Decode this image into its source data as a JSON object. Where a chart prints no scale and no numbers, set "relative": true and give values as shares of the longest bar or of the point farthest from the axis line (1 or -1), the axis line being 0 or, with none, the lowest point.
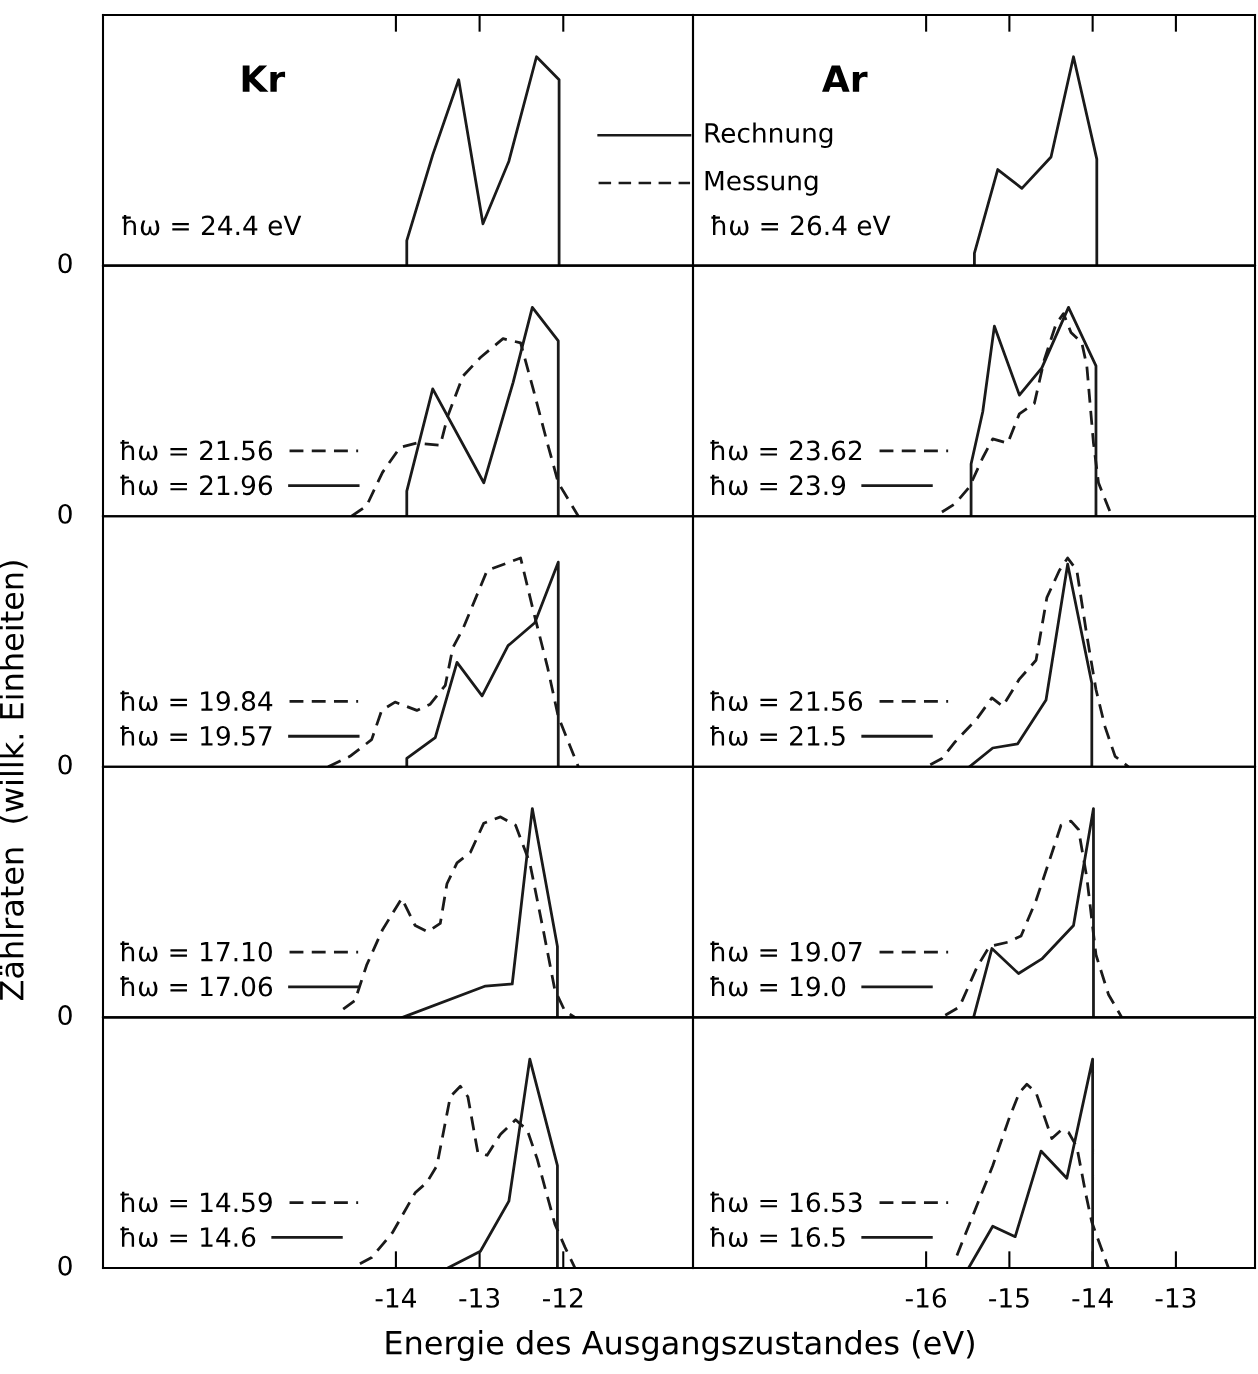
{
  "chart_data": [
    {
      "type": "line",
      "title": "Kr",
      "relative": true,
      "xlim": [
        -17.5,
        -10.45
      ],
      "xticks": [
        -14,
        -13,
        -12
      ],
      "tick_labels": false,
      "legend": false,
      "annotations": [
        "0",
        "ħω = 24.4 eV",
        "Rechnung",
        "Messung"
      ],
      "series": [
        {
          "color": "#1a1a1a",
          "line_style": "solid",
          "x": [
            -13.87,
            -13.87,
            -13.56,
            -13.25,
            -12.96,
            -12.65,
            -12.32,
            -12.05,
            -12.05
          ],
          "values": [
            0,
            0.12,
            0.53,
            0.89,
            0.2,
            0.5,
            1,
            0.89,
            0
          ]
        }
      ]
    },
    {
      "type": "line",
      "title": "Ar",
      "relative": true,
      "xlim": [
        -18.8,
        -12.05
      ],
      "xticks": [
        -16,
        -15,
        -14,
        -13
      ],
      "tick_labels": false,
      "legend": false,
      "annotations": [
        "ħω = 26.4 eV"
      ],
      "series": [
        {
          "color": "#1a1a1a",
          "line_style": "solid",
          "x": [
            -15.42,
            -15.42,
            -15.14,
            -14.85,
            -14.5,
            -14.23,
            -13.95,
            -13.95
          ],
          "values": [
            0,
            0.06,
            0.46,
            0.37,
            0.52,
            1,
            0.51,
            0
          ]
        }
      ]
    },
    {
      "type": "line",
      "relative": true,
      "xlim": [
        -17.5,
        -10.45
      ],
      "xticks": [
        -14,
        -13,
        -12
      ],
      "tick_labels": false,
      "legend": "lower left",
      "annotations": [
        "0"
      ],
      "series": [
        {
          "name": "ħω = 21.56",
          "color": "#1a1a1a",
          "line_style": "dashed",
          "x": [
            -14.53,
            -14.35,
            -14.16,
            -13.95,
            -13.75,
            -13.47,
            -13.38,
            -13.2,
            -12.99,
            -12.72,
            -12.51,
            -12.36,
            -12.19,
            -12.06,
            -11.82
          ],
          "values": [
            0,
            0.05,
            0.21,
            0.33,
            0.35,
            0.34,
            0.48,
            0.67,
            0.76,
            0.85,
            0.83,
            0.61,
            0.35,
            0.16,
            0
          ]
        },
        {
          "name": "ħω = 21.96",
          "color": "#1a1a1a",
          "line_style": "solid",
          "x": [
            -13.87,
            -13.87,
            -13.56,
            -12.95,
            -12.6,
            -12.37,
            -12.06,
            -12.06
          ],
          "values": [
            0,
            0.12,
            0.61,
            0.16,
            0.64,
            1,
            0.84,
            0
          ]
        }
      ]
    },
    {
      "type": "line",
      "relative": true,
      "xlim": [
        -18.8,
        -12.05
      ],
      "xticks": [
        -16,
        -15,
        -14,
        -13
      ],
      "tick_labels": false,
      "legend": "lower left",
      "series": [
        {
          "name": "ħω = 23.62",
          "color": "#1a1a1a",
          "line_style": "dashed",
          "x": [
            -15.81,
            -15.65,
            -15.48,
            -15.32,
            -15.2,
            -15.02,
            -14.88,
            -14.7,
            -14.58,
            -14.44,
            -14.35,
            -14.26,
            -14.13,
            -14.07,
            -13.99,
            -13.93,
            -13.77
          ],
          "values": [
            0.02,
            0.06,
            0.14,
            0.28,
            0.37,
            0.35,
            0.49,
            0.54,
            0.75,
            0.92,
            0.97,
            0.88,
            0.83,
            0.72,
            0.35,
            0.16,
            0
          ]
        },
        {
          "name": "ħω = 23.9",
          "color": "#1a1a1a",
          "line_style": "solid",
          "x": [
            -15.46,
            -15.46,
            -15.32,
            -15.18,
            -14.88,
            -14.61,
            -14.29,
            -13.96,
            -13.96
          ],
          "values": [
            0,
            0.25,
            0.5,
            0.91,
            0.58,
            0.71,
            1,
            0.72,
            0
          ]
        }
      ]
    },
    {
      "type": "line",
      "ylabel": "Zählraten  (willk. Einheiten)",
      "relative": true,
      "xlim": [
        -17.5,
        -10.45
      ],
      "xticks": [
        -14,
        -13,
        -12
      ],
      "tick_labels": false,
      "legend": "lower left",
      "annotations": [
        "0"
      ],
      "series": [
        {
          "name": "ħω = 19.84",
          "color": "#1a1a1a",
          "line_style": "dashed",
          "x": [
            -14.81,
            -14.55,
            -14.29,
            -14.17,
            -14.01,
            -13.75,
            -13.59,
            -13.41,
            -13.32,
            -13.2,
            -12.91,
            -12.51,
            -12.36,
            -12.19,
            -12.06,
            -11.82
          ],
          "values": [
            0,
            0.05,
            0.13,
            0.27,
            0.31,
            0.27,
            0.3,
            0.39,
            0.57,
            0.66,
            0.94,
            1,
            0.75,
            0.48,
            0.24,
            0
          ]
        },
        {
          "name": "ħω = 19.57",
          "color": "#1a1a1a",
          "line_style": "solid",
          "x": [
            -13.87,
            -13.87,
            -13.53,
            -13.27,
            -12.97,
            -12.66,
            -12.34,
            -12.06,
            -12.06
          ],
          "values": [
            0,
            0.04,
            0.14,
            0.5,
            0.34,
            0.58,
            0.69,
            0.98,
            0
          ]
        }
      ]
    },
    {
      "type": "line",
      "relative": true,
      "xlim": [
        -18.8,
        -12.05
      ],
      "xticks": [
        -16,
        -15,
        -14,
        -13
      ],
      "tick_labels": false,
      "legend": "lower left",
      "series": [
        {
          "name": "ħω = 21.56",
          "color": "#1a1a1a",
          "line_style": "dashed",
          "x": [
            -15.95,
            -15.81,
            -15.65,
            -15.39,
            -15.21,
            -15.08,
            -14.88,
            -14.68,
            -14.55,
            -14.4,
            -14.3,
            -14.19,
            -14.07,
            -13.96,
            -13.85,
            -13.73,
            -13.57
          ],
          "values": [
            0.01,
            0.04,
            0.12,
            0.23,
            0.33,
            0.29,
            0.42,
            0.51,
            0.81,
            0.94,
            1,
            0.94,
            0.63,
            0.37,
            0.19,
            0.05,
            0
          ]
        },
        {
          "name": "ħω = 21.5",
          "color": "#1a1a1a",
          "line_style": "solid",
          "x": [
            -15.48,
            -15.2,
            -14.9,
            -14.56,
            -14.3,
            -14.01,
            -14.01
          ],
          "values": [
            0,
            0.09,
            0.11,
            0.32,
            0.97,
            0.4,
            0
          ]
        }
      ]
    },
    {
      "type": "line",
      "relative": true,
      "xlim": [
        -17.5,
        -10.45
      ],
      "xticks": [
        -14,
        -13,
        -12
      ],
      "tick_labels": false,
      "legend": "lower left",
      "annotations": [
        "0"
      ],
      "series": [
        {
          "name": "ħω = 17.10",
          "color": "#1a1a1a",
          "line_style": "dashed",
          "x": [
            -14.63,
            -14.49,
            -14.35,
            -14.16,
            -13.93,
            -13.77,
            -13.62,
            -13.47,
            -13.39,
            -13.27,
            -13.11,
            -12.95,
            -12.75,
            -12.57,
            -12.4,
            -12.24,
            -12.1,
            -11.98,
            -11.86
          ],
          "values": [
            0.04,
            0.08,
            0.25,
            0.42,
            0.57,
            0.44,
            0.41,
            0.45,
            0.64,
            0.74,
            0.79,
            0.93,
            0.96,
            0.92,
            0.74,
            0.42,
            0.13,
            0.03,
            0
          ]
        },
        {
          "name": "ħω = 17.06",
          "color": "#1a1a1a",
          "line_style": "solid",
          "x": [
            -13.92,
            -12.93,
            -12.61,
            -12.37,
            -12.07,
            -12.07
          ],
          "values": [
            0,
            0.15,
            0.16,
            1,
            0.34,
            0
          ]
        }
      ]
    },
    {
      "type": "line",
      "relative": true,
      "xlim": [
        -18.8,
        -12.05
      ],
      "xticks": [
        -16,
        -15,
        -14,
        -13
      ],
      "tick_labels": false,
      "legend": "lower left",
      "series": [
        {
          "name": "ħω = 19.07",
          "color": "#1a1a1a",
          "line_style": "dashed",
          "x": [
            -15.77,
            -15.6,
            -15.39,
            -15.24,
            -15.02,
            -14.86,
            -14.68,
            -14.52,
            -14.38,
            -14.26,
            -14.17,
            -14.07,
            -13.96,
            -13.81,
            -13.65
          ],
          "values": [
            0.01,
            0.05,
            0.24,
            0.34,
            0.36,
            0.39,
            0.56,
            0.75,
            0.92,
            0.94,
            0.9,
            0.67,
            0.3,
            0.11,
            0
          ]
        },
        {
          "name": "ħω = 19.0",
          "color": "#1a1a1a",
          "line_style": "solid",
          "x": [
            -15.43,
            -15.21,
            -14.89,
            -14.61,
            -14.23,
            -13.99,
            -13.99
          ],
          "values": [
            0,
            0.33,
            0.21,
            0.28,
            0.44,
            1,
            0
          ]
        }
      ]
    },
    {
      "type": "line",
      "xlabel": "Energie des Ausgangszustandes (eV)",
      "relative": true,
      "xlim": [
        -17.5,
        -10.45
      ],
      "xticks": [
        -14,
        -13,
        -12
      ],
      "tick_labels": "x",
      "legend": "lower left",
      "annotations": [
        "0"
      ],
      "series": [
        {
          "name": "ħω = 14.59",
          "color": "#1a1a1a",
          "line_style": "dashed",
          "x": [
            -14.43,
            -14.29,
            -14.04,
            -13.77,
            -13.63,
            -13.51,
            -13.35,
            -13.23,
            -13.14,
            -13.02,
            -12.91,
            -12.75,
            -12.57,
            -12.43,
            -12.31,
            -12.1,
            -11.98,
            -11.86
          ],
          "values": [
            0.02,
            0.05,
            0.17,
            0.36,
            0.41,
            0.49,
            0.82,
            0.87,
            0.82,
            0.55,
            0.54,
            0.64,
            0.71,
            0.66,
            0.52,
            0.21,
            0.1,
            0
          ]
        },
        {
          "name": "ħω = 14.6",
          "color": "#1a1a1a",
          "line_style": "solid",
          "x": [
            -13.38,
            -12.99,
            -12.65,
            -12.4,
            -12.07,
            -12.07
          ],
          "values": [
            0,
            0.08,
            0.32,
            1,
            0.49,
            0
          ]
        }
      ]
    },
    {
      "type": "line",
      "relative": true,
      "xlim": [
        -18.8,
        -12.05
      ],
      "xticks": [
        -16,
        -15,
        -14,
        -13
      ],
      "tick_labels": "x",
      "legend": "lower left",
      "series": [
        {
          "name": "ħω = 16.53",
          "color": "#1a1a1a",
          "line_style": "dashed",
          "x": [
            -15.63,
            -15.44,
            -15.2,
            -15.0,
            -14.88,
            -14.79,
            -14.68,
            -14.49,
            -14.38,
            -14.29,
            -14.19,
            -14.08,
            -14.01,
            -13.81
          ],
          "values": [
            0.06,
            0.25,
            0.49,
            0.72,
            0.84,
            0.88,
            0.84,
            0.62,
            0.66,
            0.65,
            0.58,
            0.35,
            0.22,
            0
          ]
        },
        {
          "name": "ħω = 16.5",
          "color": "#1a1a1a",
          "line_style": "solid",
          "x": [
            -15.49,
            -15.2,
            -14.93,
            -14.62,
            -14.31,
            -14.0,
            -14.0
          ],
          "values": [
            0,
            0.2,
            0.15,
            0.56,
            0.43,
            1,
            0
          ]
        }
      ]
    }
  ]
}
